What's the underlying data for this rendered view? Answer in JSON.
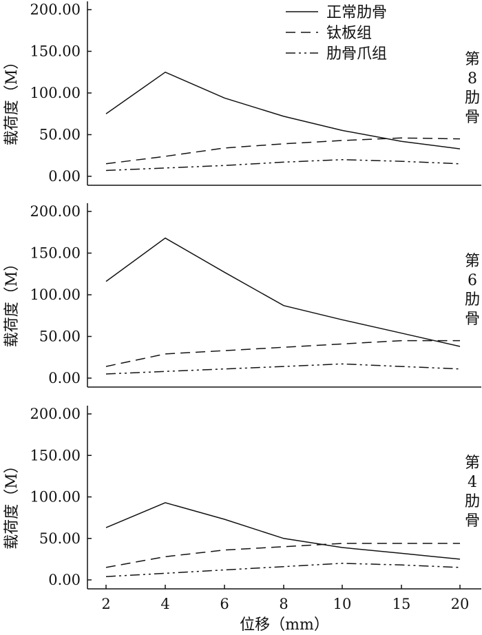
{
  "chart_data": [
    {
      "type": "line",
      "panel_label": [
        "第",
        "8",
        "肋",
        "骨"
      ],
      "ylabel": "载荷度（M）",
      "xlabel": "",
      "categories": [
        "2",
        "4",
        "6",
        "8",
        "10",
        "15",
        "20"
      ],
      "yticks": [
        "0.00",
        "50.00",
        "100.00",
        "150.00",
        "200.00"
      ],
      "ylim": [
        0,
        200
      ],
      "legend": "top-right",
      "series": [
        {
          "name": "正常肋骨",
          "style": "solid",
          "x": [
            2,
            4,
            6,
            8,
            10,
            15,
            20
          ],
          "values": [
            75,
            125,
            94,
            72,
            55,
            42,
            33
          ]
        },
        {
          "name": "钛板组",
          "style": "dashed",
          "x": [
            2,
            4,
            6,
            8,
            10,
            15,
            20
          ],
          "values": [
            15,
            24,
            34,
            39,
            43,
            46,
            45
          ]
        },
        {
          "name": "肋骨爪组",
          "style": "dashdotdot",
          "x": [
            2,
            4,
            6,
            8,
            10,
            15,
            20
          ],
          "values": [
            7,
            10,
            13,
            17,
            20,
            18,
            15
          ]
        }
      ]
    },
    {
      "type": "line",
      "panel_label": [
        "第",
        "6",
        "肋",
        "骨"
      ],
      "ylabel": "载荷度（M）",
      "xlabel": "",
      "categories": [
        "2",
        "4",
        "6",
        "8",
        "10",
        "15",
        "20"
      ],
      "yticks": [
        "0.00",
        "50.00",
        "100.00",
        "150.00",
        "200.00"
      ],
      "ylim": [
        0,
        200
      ],
      "series": [
        {
          "name": "正常肋骨",
          "style": "solid",
          "x": [
            2,
            4,
            6,
            8,
            10,
            15,
            20
          ],
          "values": [
            116,
            168,
            127,
            87,
            70,
            54,
            38
          ]
        },
        {
          "name": "钛板组",
          "style": "dashed",
          "x": [
            2,
            4,
            6,
            8,
            10,
            15,
            20
          ],
          "values": [
            14,
            29,
            33,
            37,
            41,
            45,
            45
          ]
        },
        {
          "name": "肋骨爪组",
          "style": "dashdotdot",
          "x": [
            2,
            4,
            6,
            8,
            10,
            15,
            20
          ],
          "values": [
            5,
            8,
            11,
            14,
            17,
            14,
            11
          ]
        }
      ]
    },
    {
      "type": "line",
      "panel_label": [
        "第",
        "4",
        "肋",
        "骨"
      ],
      "ylabel": "载荷度（M）",
      "xlabel": "位移（mm）",
      "categories": [
        "2",
        "4",
        "6",
        "8",
        "10",
        "15",
        "20"
      ],
      "yticks": [
        "0.00",
        "50.00",
        "100.00",
        "150.00",
        "200.00"
      ],
      "ylim": [
        0,
        200
      ],
      "series": [
        {
          "name": "正常肋骨",
          "style": "solid",
          "x": [
            2,
            4,
            6,
            8,
            10,
            15,
            20
          ],
          "values": [
            63,
            93,
            73,
            50,
            39,
            32,
            25
          ]
        },
        {
          "name": "钛板组",
          "style": "dashed",
          "x": [
            2,
            4,
            6,
            8,
            10,
            15,
            20
          ],
          "values": [
            15,
            28,
            36,
            40,
            44,
            44,
            44
          ]
        },
        {
          "name": "肋骨爪组",
          "style": "dashdotdot",
          "x": [
            2,
            4,
            6,
            8,
            10,
            15,
            20
          ],
          "values": [
            4,
            8,
            12,
            16,
            20,
            18,
            15
          ]
        }
      ]
    }
  ]
}
